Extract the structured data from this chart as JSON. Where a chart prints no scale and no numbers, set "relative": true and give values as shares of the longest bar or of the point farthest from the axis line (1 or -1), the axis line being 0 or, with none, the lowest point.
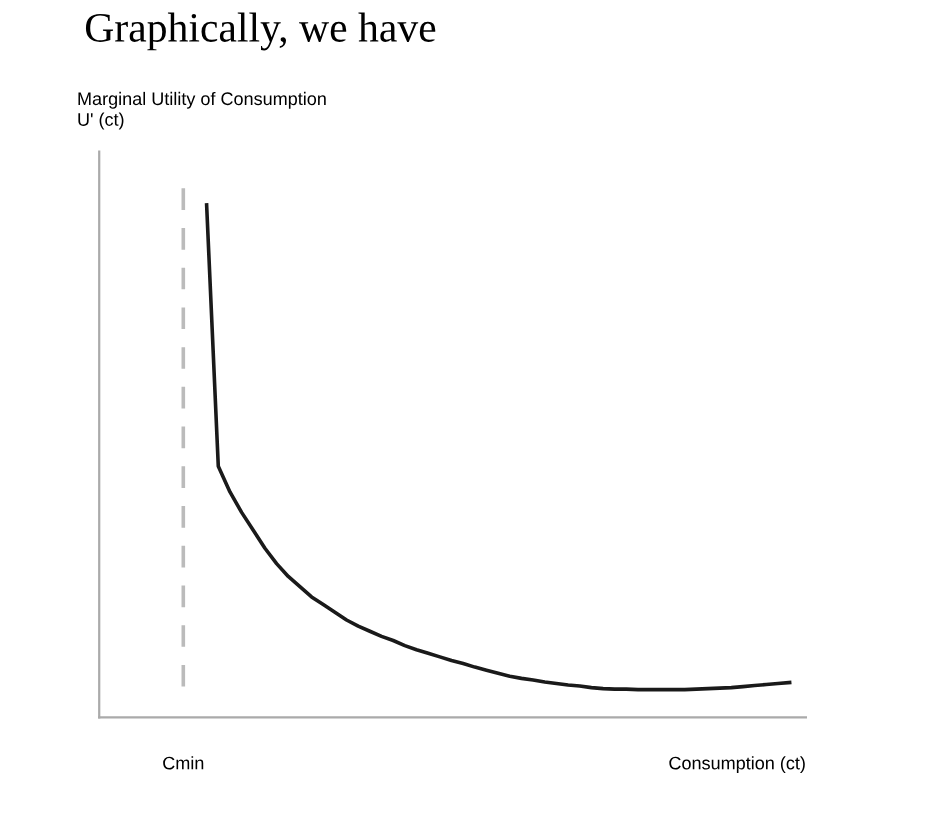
{
  "chart_data": {
    "type": "line",
    "relative": true,
    "ylabel": "Marginal Utility of Consumption\nU' (ct)",
    "xlabel": "Consumption (ct)",
    "annotations": [
      "Graphically, we have"
    ],
    "categories": [
      null,
      null,
      null,
      null,
      null,
      null,
      null,
      null,
      null,
      null,
      null,
      null,
      null,
      null,
      null,
      null,
      null,
      null,
      null,
      null,
      null,
      null,
      null,
      null,
      null,
      null,
      null,
      null,
      null,
      null,
      null,
      null,
      null,
      null,
      null,
      null,
      null,
      null,
      null,
      null,
      null,
      null,
      null,
      null,
      null,
      null,
      null,
      null,
      null,
      null,
      null,
      null,
      null
    ],
    "series": [
      {
        "color": "#1a1a1a",
        "values": [
          null,
          null,
          1,
          0.49,
          0.44,
          0.4,
          0.365,
          0.33,
          0.3,
          0.275,
          0.255,
          0.235,
          0.22,
          0.205,
          0.19,
          0.178,
          0.168,
          0.158,
          0.15,
          0.14,
          0.132,
          0.125,
          0.118,
          0.111,
          0.105,
          0.098,
          0.092,
          0.086,
          0.08,
          0.076,
          0.073,
          0.069,
          0.066,
          0.063,
          0.061,
          0.058,
          0.056,
          0.055,
          0.055,
          0.054,
          0.054,
          0.054,
          0.054,
          0.054,
          0.055,
          0.056,
          0.057,
          0.058,
          0.06,
          0.062,
          0.064,
          0.066,
          0.068
        ]
      }
    ],
    "ref_lines": [
      {
        "axis": "x",
        "label": "Cmin",
        "color": "#bbbbbb",
        "line_style": "dashed"
      }
    ],
    "legend": false,
    "marker": "none",
    "line_style": "solid"
  }
}
